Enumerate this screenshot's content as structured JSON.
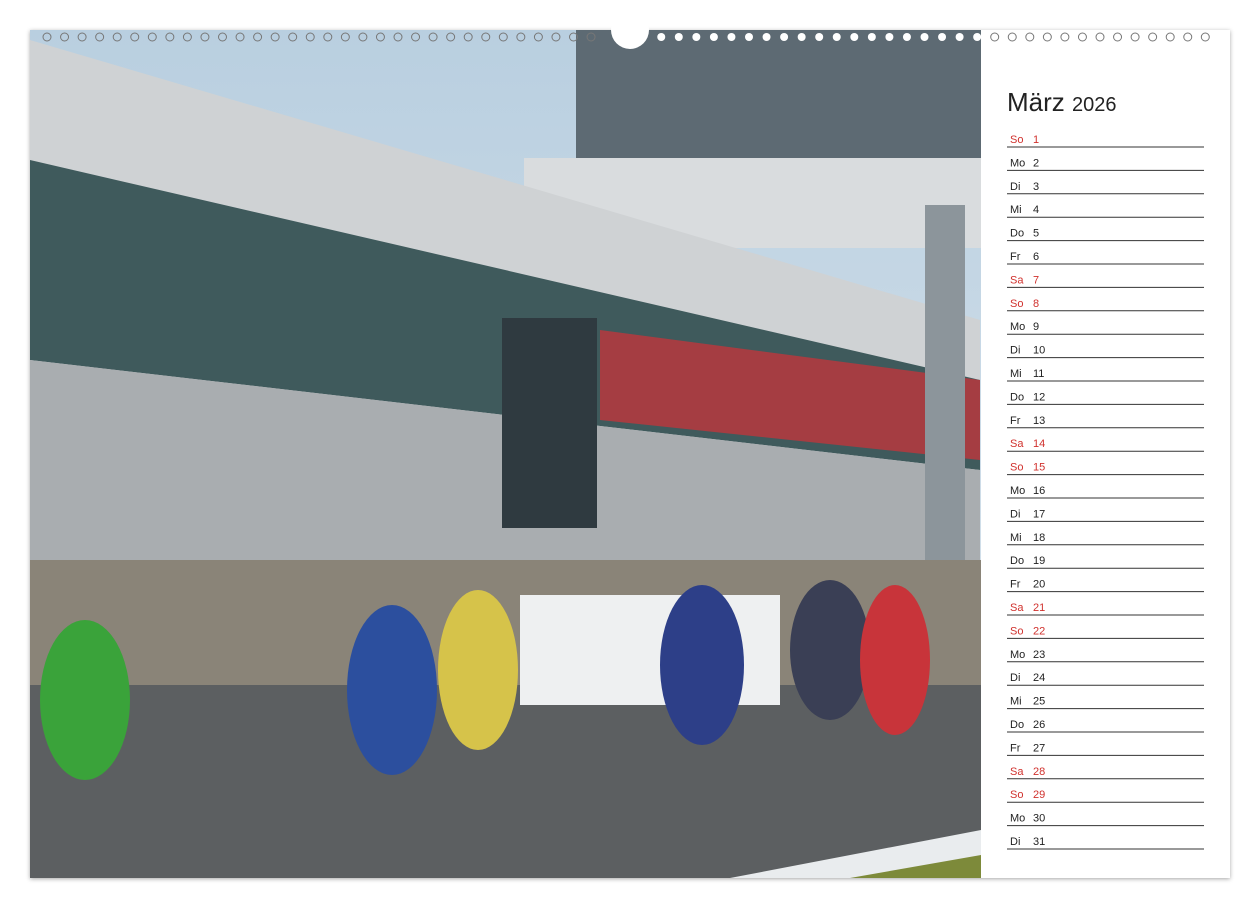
{
  "calendar": {
    "month": "März",
    "year": "2026",
    "days": [
      {
        "weekday": "So",
        "day": 1,
        "color": "#d0312d"
      },
      {
        "weekday": "Mo",
        "day": 2,
        "color": "#222222"
      },
      {
        "weekday": "Di",
        "day": 3,
        "color": "#222222"
      },
      {
        "weekday": "Mi",
        "day": 4,
        "color": "#222222"
      },
      {
        "weekday": "Do",
        "day": 5,
        "color": "#222222"
      },
      {
        "weekday": "Fr",
        "day": 6,
        "color": "#222222"
      },
      {
        "weekday": "Sa",
        "day": 7,
        "color": "#d0312d"
      },
      {
        "weekday": "So",
        "day": 8,
        "color": "#d0312d"
      },
      {
        "weekday": "Mo",
        "day": 9,
        "color": "#222222"
      },
      {
        "weekday": "Di",
        "day": 10,
        "color": "#222222"
      },
      {
        "weekday": "Mi",
        "day": 11,
        "color": "#222222"
      },
      {
        "weekday": "Do",
        "day": 12,
        "color": "#222222"
      },
      {
        "weekday": "Fr",
        "day": 13,
        "color": "#222222"
      },
      {
        "weekday": "Sa",
        "day": 14,
        "color": "#d0312d"
      },
      {
        "weekday": "So",
        "day": 15,
        "color": "#d0312d"
      },
      {
        "weekday": "Mo",
        "day": 16,
        "color": "#222222"
      },
      {
        "weekday": "Di",
        "day": 17,
        "color": "#222222"
      },
      {
        "weekday": "Mi",
        "day": 18,
        "color": "#222222"
      },
      {
        "weekday": "Do",
        "day": 19,
        "color": "#222222"
      },
      {
        "weekday": "Fr",
        "day": 20,
        "color": "#222222"
      },
      {
        "weekday": "Sa",
        "day": 21,
        "color": "#d0312d"
      },
      {
        "weekday": "So",
        "day": 22,
        "color": "#d0312d"
      },
      {
        "weekday": "Mo",
        "day": 23,
        "color": "#222222"
      },
      {
        "weekday": "Di",
        "day": 24,
        "color": "#222222"
      },
      {
        "weekday": "Mi",
        "day": 25,
        "color": "#222222"
      },
      {
        "weekday": "Do",
        "day": 26,
        "color": "#222222"
      },
      {
        "weekday": "Fr",
        "day": 27,
        "color": "#222222"
      },
      {
        "weekday": "Sa",
        "day": 28,
        "color": "#d0312d"
      },
      {
        "weekday": "So",
        "day": 29,
        "color": "#d0312d"
      },
      {
        "weekday": "Mo",
        "day": 30,
        "color": "#222222"
      },
      {
        "weekday": "Di",
        "day": 31,
        "color": "#222222"
      }
    ]
  }
}
